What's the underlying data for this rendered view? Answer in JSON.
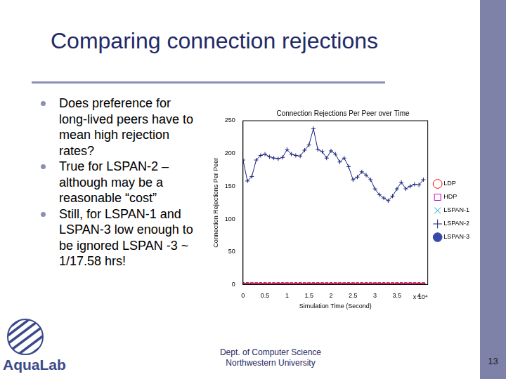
{
  "slide": {
    "title": "Comparing connection rejections",
    "bullets": [
      "Does preference for long-lived peers have to mean high rejection rates?",
      "True for LSPAN-2 – although may be a reasonable “cost”",
      "Still, for LSPAN-1 and LSPAN-3 low enough to be ignored LSPAN -3 ~ 1/17.58 hrs!"
    ],
    "footer": [
      "Dept. of Computer Science",
      "Northwestern University"
    ],
    "page": "13",
    "logo_text": "AquaLab"
  },
  "chart_data": {
    "type": "line",
    "title": "Connection Rejections Per Peer over Time",
    "x_label": "Simulation Time (Second)",
    "y_label": "Connection Rejections Per Peer",
    "annotations": [
      "x 10⁴"
    ],
    "x": [
      0,
      0.1,
      0.2,
      0.3,
      0.4,
      0.5,
      0.6,
      0.7,
      0.8,
      0.9,
      1.0,
      1.1,
      1.2,
      1.3,
      1.4,
      1.5,
      1.6,
      1.7,
      1.8,
      1.9,
      2.0,
      2.1,
      2.2,
      2.3,
      2.4,
      2.5,
      2.6,
      2.7,
      2.8,
      2.9,
      3.0,
      3.1,
      3.2,
      3.3,
      3.4,
      3.5,
      3.6,
      3.7,
      3.8,
      3.9,
      4.0,
      4.1
    ],
    "series": [
      {
        "name": "LDP",
        "color": "#ff0000",
        "marker": "circle",
        "line_style": "solid",
        "values": [
          0,
          0,
          0,
          0,
          0,
          0,
          0,
          0,
          0,
          0,
          0,
          0,
          0,
          0,
          0,
          0,
          0,
          0,
          0,
          0,
          0,
          0,
          0,
          0,
          0,
          0,
          0,
          0,
          0,
          0,
          0,
          0,
          0,
          0,
          0,
          0,
          0,
          0,
          0,
          0,
          0,
          0
        ]
      },
      {
        "name": "HDP",
        "color": "#cc00cc",
        "marker": "square",
        "line_style": "solid",
        "values": [
          0,
          0,
          0,
          0,
          0,
          0,
          0,
          0,
          0,
          0,
          0,
          0,
          0,
          0,
          0,
          0,
          0,
          0,
          0,
          0,
          0,
          0,
          0,
          0,
          0,
          0,
          0,
          0,
          0,
          0,
          0,
          0,
          0,
          0,
          0,
          0,
          0,
          0,
          0,
          0,
          0,
          0
        ]
      },
      {
        "name": "LSPAN-1",
        "color": "#00aacc",
        "marker": "x",
        "line_style": "solid",
        "values": [
          1,
          1,
          1,
          1,
          1,
          1,
          1,
          1,
          1,
          1,
          1,
          1,
          1,
          1,
          1,
          1,
          1,
          1,
          1,
          1,
          1,
          1,
          1,
          1,
          1,
          1,
          1,
          1,
          1,
          1,
          1,
          1,
          1,
          1,
          1,
          1,
          1,
          1,
          1,
          1,
          1,
          1
        ]
      },
      {
        "name": "LSPAN-2",
        "color": "#1a237e",
        "marker": "plus",
        "line_style": "solid",
        "values": [
          190,
          158,
          165,
          190,
          197,
          199,
          195,
          193,
          192,
          194,
          206,
          199,
          197,
          196,
          205,
          213,
          238,
          206,
          203,
          193,
          204,
          199,
          187,
          193,
          180,
          160,
          164,
          172,
          167,
          160,
          146,
          137,
          132,
          128,
          135,
          146,
          156,
          146,
          150,
          153,
          152,
          160
        ]
      },
      {
        "name": "LSPAN-3",
        "color": "#3949ab",
        "marker": "dot",
        "line_style": "dashed",
        "values": [
          0,
          0,
          0,
          0,
          0,
          0,
          0,
          0,
          0,
          0,
          0,
          0,
          0,
          0,
          0,
          0,
          0,
          0,
          0,
          0,
          0,
          0,
          0,
          0,
          0,
          0,
          0,
          0,
          0,
          0,
          0,
          0,
          0,
          0,
          0,
          0,
          0,
          0,
          0,
          0,
          0,
          0
        ]
      }
    ],
    "xlim": [
      0,
      4.2
    ],
    "xticks": [
      0,
      0.5,
      1,
      1.5,
      2,
      2.5,
      3,
      3.5,
      4
    ],
    "ylim": [
      0,
      250
    ],
    "yticks": [
      0,
      50,
      100,
      150,
      200,
      250
    ],
    "legend": "right",
    "grid": false
  }
}
